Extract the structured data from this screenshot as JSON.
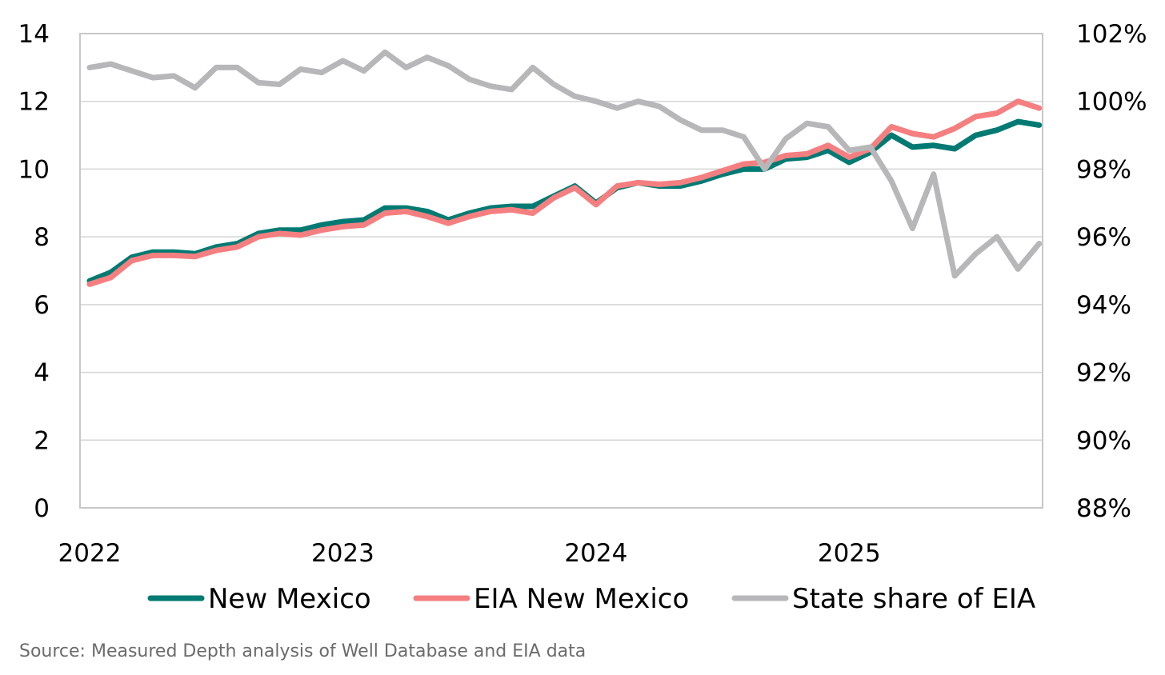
{
  "chart_data": {
    "type": "line",
    "title": "",
    "xlabel": "",
    "ylabel": "",
    "y2label": "",
    "ylim": [
      0,
      14
    ],
    "y2lim": [
      88,
      102
    ],
    "yticks": [
      0,
      2,
      4,
      6,
      8,
      10,
      12,
      14
    ],
    "y2ticks": [
      "88%",
      "90%",
      "92%",
      "94%",
      "96%",
      "98%",
      "100%",
      "102%"
    ],
    "y2tick_values": [
      88,
      90,
      92,
      94,
      96,
      98,
      100,
      102
    ],
    "x_start": "2022-01",
    "x_end": "2025-10",
    "xticks": [
      "2022",
      "2023",
      "2024",
      "2025"
    ],
    "grid": true,
    "legend_position": "bottom",
    "series": [
      {
        "name": "New Mexico",
        "axis": "left",
        "color": "#007a72",
        "values": [
          6.7,
          6.95,
          7.4,
          7.55,
          7.55,
          7.5,
          7.7,
          7.8,
          8.1,
          8.2,
          8.2,
          8.35,
          8.45,
          8.5,
          8.85,
          8.85,
          8.75,
          8.5,
          8.7,
          8.85,
          8.9,
          8.9,
          9.2,
          9.5,
          9.0,
          9.45,
          9.6,
          9.5,
          9.5,
          9.65,
          9.85,
          10.0,
          10.0,
          10.3,
          10.35,
          10.55,
          10.2,
          10.5,
          11.0,
          10.65,
          10.7,
          10.6,
          11.0,
          11.15,
          11.4,
          11.3
        ]
      },
      {
        "name": "EIA New Mexico",
        "axis": "left",
        "color": "#f57f80",
        "values": [
          6.6,
          6.8,
          7.3,
          7.45,
          7.45,
          7.42,
          7.6,
          7.7,
          8.0,
          8.1,
          8.05,
          8.2,
          8.3,
          8.35,
          8.7,
          8.75,
          8.6,
          8.4,
          8.6,
          8.75,
          8.8,
          8.7,
          9.15,
          9.45,
          8.95,
          9.5,
          9.6,
          9.55,
          9.6,
          9.75,
          9.95,
          10.15,
          10.2,
          10.4,
          10.45,
          10.7,
          10.35,
          10.6,
          11.25,
          11.05,
          10.95,
          11.2,
          11.55,
          11.65,
          12.0,
          11.8
        ]
      },
      {
        "name": "State share of EIA",
        "axis": "right",
        "color": "#b7b7b9",
        "values": [
          101.0,
          101.1,
          100.9,
          100.7,
          100.75,
          100.4,
          101.0,
          101.0,
          100.55,
          100.5,
          100.95,
          100.85,
          101.2,
          100.9,
          101.45,
          101.0,
          101.3,
          101.05,
          100.65,
          100.45,
          100.35,
          101.0,
          100.5,
          100.15,
          100.0,
          99.8,
          100.0,
          99.85,
          99.45,
          99.15,
          99.15,
          98.95,
          98.0,
          98.9,
          99.35,
          99.25,
          98.55,
          98.65,
          97.65,
          96.25,
          97.85,
          94.85,
          95.5,
          96.0,
          95.05,
          95.8
        ]
      }
    ]
  },
  "source": "Source: Measured Depth analysis of Well Database and EIA data"
}
